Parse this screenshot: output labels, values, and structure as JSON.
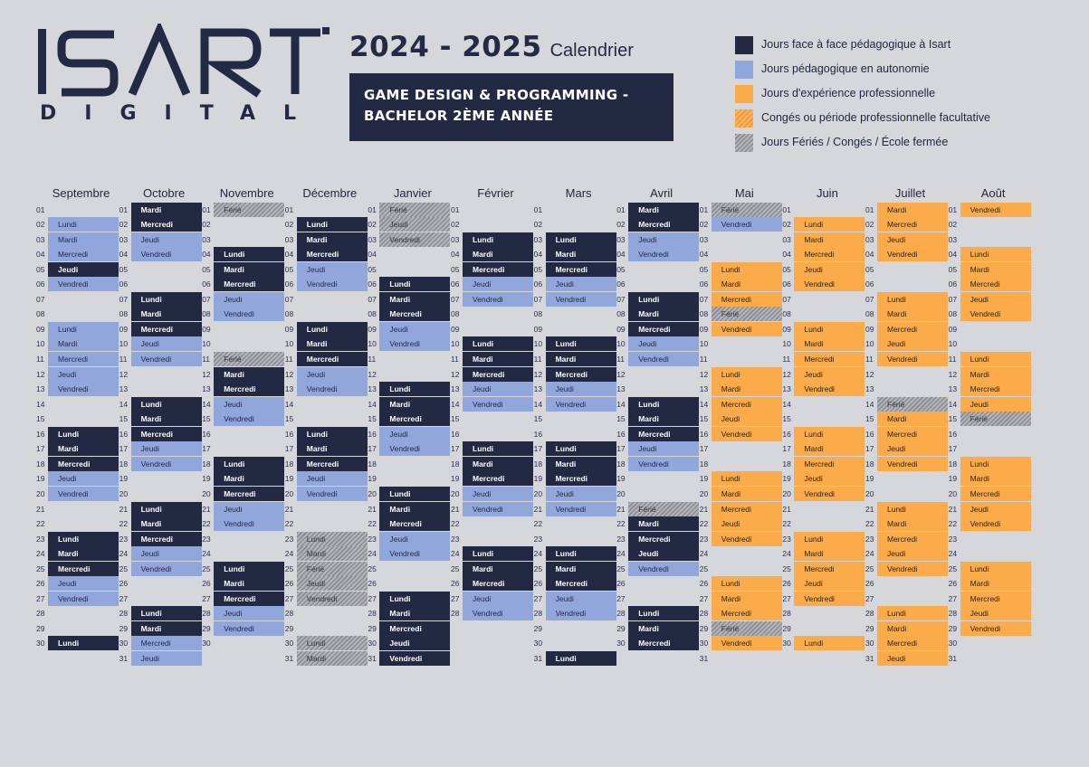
{
  "header": {
    "logo_main": "ISART",
    "logo_sub": "DIGITAL",
    "year": "2024 - 2025",
    "year_suffix": "Calendrier",
    "program_line1": "GAME DESIGN & PROGRAMMING -",
    "program_line2": "BACHELOR 2ÈME ANNÉE"
  },
  "colors": {
    "F": "#232843",
    "A": "#91a7dc",
    "P": "#fbab4a",
    "O": "#f59b35",
    "H": "#8a8c91",
    "background": "#d6d7da"
  },
  "legend": [
    {
      "key": "F",
      "label": "Jours face à face pédagogique à Isart"
    },
    {
      "key": "A",
      "label": "Jours pédagogique en autonomie"
    },
    {
      "key": "P",
      "label": "Jours d'expérience professionnelle"
    },
    {
      "key": "O",
      "label": "Congés ou période professionnelle facultative"
    },
    {
      "key": "H",
      "label": "Jours Fériés / Congés / École fermée"
    }
  ],
  "months": [
    {
      "name": "Septembre",
      "days": 30,
      "cells": {
        "02": [
          "A",
          "Lundi"
        ],
        "03": [
          "A",
          "Mardi"
        ],
        "04": [
          "A",
          "Mercredi"
        ],
        "05": [
          "F",
          "Jeudi"
        ],
        "06": [
          "A",
          "Vendredi"
        ],
        "09": [
          "A",
          "Lundi"
        ],
        "10": [
          "A",
          "Mardi"
        ],
        "11": [
          "A",
          "Mercredi"
        ],
        "12": [
          "A",
          "Jeudi"
        ],
        "13": [
          "A",
          "Vendredi"
        ],
        "16": [
          "F",
          "Lundi"
        ],
        "17": [
          "F",
          "Mardi"
        ],
        "18": [
          "F",
          "Mercredi"
        ],
        "19": [
          "A",
          "Jeudi"
        ],
        "20": [
          "A",
          "Vendredi"
        ],
        "23": [
          "F",
          "Lundi"
        ],
        "24": [
          "F",
          "Mardi"
        ],
        "25": [
          "F",
          "Mercredi"
        ],
        "26": [
          "A",
          "Jeudi"
        ],
        "27": [
          "A",
          "Vendredi"
        ],
        "30": [
          "F",
          "Lundi"
        ]
      }
    },
    {
      "name": "Octobre",
      "days": 31,
      "cells": {
        "01": [
          "F",
          "Mardi"
        ],
        "02": [
          "F",
          "Mercredi"
        ],
        "03": [
          "A",
          "Jeudi"
        ],
        "04": [
          "A",
          "Vendredi"
        ],
        "07": [
          "F",
          "Lundi"
        ],
        "08": [
          "F",
          "Mardi"
        ],
        "09": [
          "F",
          "Mercredi"
        ],
        "10": [
          "A",
          "Jeudi"
        ],
        "11": [
          "A",
          "Vendredi"
        ],
        "14": [
          "F",
          "Lundi"
        ],
        "15": [
          "F",
          "Mardi"
        ],
        "16": [
          "F",
          "Mercredi"
        ],
        "17": [
          "A",
          "Jeudi"
        ],
        "18": [
          "A",
          "Vendredi"
        ],
        "21": [
          "F",
          "Lundi"
        ],
        "22": [
          "F",
          "Mardi"
        ],
        "23": [
          "F",
          "Mercredi"
        ],
        "24": [
          "A",
          "Jeudi"
        ],
        "25": [
          "A",
          "Vendredi"
        ],
        "28": [
          "F",
          "Lundi"
        ],
        "29": [
          "F",
          "Mardi"
        ],
        "30": [
          "A",
          "Mercredi"
        ],
        "31": [
          "A",
          "Jeudi"
        ]
      }
    },
    {
      "name": "Novembre",
      "days": 30,
      "cells": {
        "01": [
          "H",
          "Férié"
        ],
        "04": [
          "F",
          "Lundi"
        ],
        "05": [
          "F",
          "Mardi"
        ],
        "06": [
          "F",
          "Mercredi"
        ],
        "07": [
          "A",
          "Jeudi"
        ],
        "08": [
          "A",
          "Vendredi"
        ],
        "11": [
          "H",
          "Férié"
        ],
        "12": [
          "F",
          "Mardi"
        ],
        "13": [
          "F",
          "Mercredi"
        ],
        "14": [
          "A",
          "Jeudi"
        ],
        "15": [
          "A",
          "Vendredi"
        ],
        "18": [
          "F",
          "Lundi"
        ],
        "19": [
          "F",
          "Mardi"
        ],
        "20": [
          "F",
          "Mercredi"
        ],
        "21": [
          "A",
          "Jeudi"
        ],
        "22": [
          "A",
          "Vendredi"
        ],
        "25": [
          "F",
          "Lundi"
        ],
        "26": [
          "F",
          "Mardi"
        ],
        "27": [
          "F",
          "Mercredi"
        ],
        "28": [
          "A",
          "Jeudi"
        ],
        "29": [
          "A",
          "Vendredi"
        ]
      }
    },
    {
      "name": "Décembre",
      "days": 31,
      "cells": {
        "02": [
          "F",
          "Lundi"
        ],
        "03": [
          "F",
          "Mardi"
        ],
        "04": [
          "F",
          "Mercredi"
        ],
        "05": [
          "A",
          "Jeudi"
        ],
        "06": [
          "A",
          "Vendredi"
        ],
        "09": [
          "F",
          "Lundi"
        ],
        "10": [
          "F",
          "Mardi"
        ],
        "11": [
          "F",
          "Mercredi"
        ],
        "12": [
          "A",
          "Jeudi"
        ],
        "13": [
          "A",
          "Vendredi"
        ],
        "16": [
          "F",
          "Lundi"
        ],
        "17": [
          "F",
          "Mardi"
        ],
        "18": [
          "F",
          "Mercredi"
        ],
        "19": [
          "A",
          "Jeudi"
        ],
        "20": [
          "A",
          "Vendredi"
        ],
        "23": [
          "H",
          "Lundi"
        ],
        "24": [
          "H",
          "Mardi"
        ],
        "25": [
          "H",
          "Férié"
        ],
        "26": [
          "H",
          "Jeudi"
        ],
        "27": [
          "H",
          "Vendredi"
        ],
        "30": [
          "H",
          "Lundi"
        ],
        "31": [
          "H",
          "Mardi"
        ]
      }
    },
    {
      "name": "Janvier",
      "days": 31,
      "cells": {
        "01": [
          "H",
          "Férié"
        ],
        "02": [
          "H",
          "Jeudi"
        ],
        "03": [
          "H",
          "Vendredi"
        ],
        "06": [
          "F",
          "Lundi"
        ],
        "07": [
          "F",
          "Mardi"
        ],
        "08": [
          "F",
          "Mercredi"
        ],
        "09": [
          "A",
          "Jeudi"
        ],
        "10": [
          "A",
          "Vendredi"
        ],
        "13": [
          "F",
          "Lundi"
        ],
        "14": [
          "F",
          "Mardi"
        ],
        "15": [
          "F",
          "Mercredi"
        ],
        "16": [
          "A",
          "Jeudi"
        ],
        "17": [
          "A",
          "Vendredi"
        ],
        "20": [
          "F",
          "Lundi"
        ],
        "21": [
          "F",
          "Mardi"
        ],
        "22": [
          "F",
          "Mercredi"
        ],
        "23": [
          "A",
          "Jeudi"
        ],
        "24": [
          "A",
          "Vendredi"
        ],
        "27": [
          "F",
          "Lundi"
        ],
        "28": [
          "F",
          "Mardi"
        ],
        "29": [
          "F",
          "Mercredi"
        ],
        "30": [
          "F",
          "Jeudi"
        ],
        "31": [
          "F",
          "Vendredi"
        ]
      }
    },
    {
      "name": "Février",
      "days": 28,
      "cells": {
        "03": [
          "F",
          "Lundi"
        ],
        "04": [
          "F",
          "Mardi"
        ],
        "05": [
          "F",
          "Mercredi"
        ],
        "06": [
          "A",
          "Jeudi"
        ],
        "07": [
          "A",
          "Vendredi"
        ],
        "10": [
          "F",
          "Lundi"
        ],
        "11": [
          "F",
          "Mardi"
        ],
        "12": [
          "F",
          "Mercredi"
        ],
        "13": [
          "A",
          "Jeudi"
        ],
        "14": [
          "A",
          "Vendredi"
        ],
        "17": [
          "F",
          "Lundi"
        ],
        "18": [
          "F",
          "Mardi"
        ],
        "19": [
          "F",
          "Mercredi"
        ],
        "20": [
          "A",
          "Jeudi"
        ],
        "21": [
          "A",
          "Vendredi"
        ],
        "24": [
          "F",
          "Lundi"
        ],
        "25": [
          "F",
          "Mardi"
        ],
        "26": [
          "F",
          "Mercredi"
        ],
        "27": [
          "A",
          "Jeudi"
        ],
        "28": [
          "A",
          "Vendredi"
        ]
      }
    },
    {
      "name": "Mars",
      "days": 31,
      "cells": {
        "03": [
          "F",
          "Lundi"
        ],
        "04": [
          "F",
          "Mardi"
        ],
        "05": [
          "F",
          "Mercredi"
        ],
        "06": [
          "A",
          "Jeudi"
        ],
        "07": [
          "A",
          "Vendredi"
        ],
        "10": [
          "F",
          "Lundi"
        ],
        "11": [
          "F",
          "Mardi"
        ],
        "12": [
          "F",
          "Mercredi"
        ],
        "13": [
          "A",
          "Jeudi"
        ],
        "14": [
          "A",
          "Vendredi"
        ],
        "17": [
          "F",
          "Lundi"
        ],
        "18": [
          "F",
          "Mardi"
        ],
        "19": [
          "F",
          "Mercredi"
        ],
        "20": [
          "A",
          "Jeudi"
        ],
        "21": [
          "A",
          "Vendredi"
        ],
        "24": [
          "F",
          "Lundi"
        ],
        "25": [
          "F",
          "Mardi"
        ],
        "26": [
          "F",
          "Mercredi"
        ],
        "27": [
          "A",
          "Jeudi"
        ],
        "28": [
          "A",
          "Vendredi"
        ],
        "31": [
          "F",
          "Lundi"
        ]
      }
    },
    {
      "name": "Avril",
      "days": 30,
      "cells": {
        "01": [
          "F",
          "Mardi"
        ],
        "02": [
          "F",
          "Mercredi"
        ],
        "03": [
          "A",
          "Jeudi"
        ],
        "04": [
          "A",
          "Vendredi"
        ],
        "07": [
          "F",
          "Lundi"
        ],
        "08": [
          "F",
          "Mardi"
        ],
        "09": [
          "F",
          "Mercredi"
        ],
        "10": [
          "A",
          "Jeudi"
        ],
        "11": [
          "A",
          "Vendredi"
        ],
        "14": [
          "F",
          "Lundi"
        ],
        "15": [
          "F",
          "Mardi"
        ],
        "16": [
          "F",
          "Mercredi"
        ],
        "17": [
          "A",
          "Jeudi"
        ],
        "18": [
          "A",
          "Vendredi"
        ],
        "21": [
          "H",
          "Férié"
        ],
        "22": [
          "F",
          "Mardi"
        ],
        "23": [
          "F",
          "Mercredi"
        ],
        "24": [
          "F",
          "Jeudi"
        ],
        "25": [
          "A",
          "Vendredi"
        ],
        "28": [
          "F",
          "Lundi"
        ],
        "29": [
          "F",
          "Mardi"
        ],
        "30": [
          "F",
          "Mercredi"
        ]
      }
    },
    {
      "name": "Mai",
      "days": 31,
      "cells": {
        "01": [
          "H",
          "Férié"
        ],
        "02": [
          "A",
          "Vendredi"
        ],
        "05": [
          "P",
          "Lundi"
        ],
        "06": [
          "P",
          "Mardi"
        ],
        "07": [
          "P",
          "Mercredi"
        ],
        "08": [
          "H",
          "Férié"
        ],
        "09": [
          "P",
          "Vendredi"
        ],
        "12": [
          "P",
          "Lundi"
        ],
        "13": [
          "P",
          "Mardi"
        ],
        "14": [
          "P",
          "Mercredi"
        ],
        "15": [
          "P",
          "Jeudi"
        ],
        "16": [
          "P",
          "Vendredi"
        ],
        "19": [
          "P",
          "Lundi"
        ],
        "20": [
          "P",
          "Mardi"
        ],
        "21": [
          "P",
          "Mercredi"
        ],
        "22": [
          "P",
          "Jeudi"
        ],
        "23": [
          "P",
          "Vendredi"
        ],
        "26": [
          "P",
          "Lundi"
        ],
        "27": [
          "P",
          "Mardi"
        ],
        "28": [
          "P",
          "Mercredi"
        ],
        "29": [
          "H",
          "Férié"
        ],
        "30": [
          "P",
          "Vendredi"
        ]
      }
    },
    {
      "name": "Juin",
      "days": 30,
      "cells": {
        "02": [
          "P",
          "Lundi"
        ],
        "03": [
          "P",
          "Mardi"
        ],
        "04": [
          "P",
          "Mercredi"
        ],
        "05": [
          "P",
          "Jeudi"
        ],
        "06": [
          "P",
          "Vendredi"
        ],
        "09": [
          "P",
          "Lundi"
        ],
        "10": [
          "P",
          "Mardi"
        ],
        "11": [
          "P",
          "Mercredi"
        ],
        "12": [
          "P",
          "Jeudi"
        ],
        "13": [
          "P",
          "Vendredi"
        ],
        "16": [
          "P",
          "Lundi"
        ],
        "17": [
          "P",
          "Mardi"
        ],
        "18": [
          "P",
          "Mercredi"
        ],
        "19": [
          "P",
          "Jeudi"
        ],
        "20": [
          "P",
          "Vendredi"
        ],
        "23": [
          "P",
          "Lundi"
        ],
        "24": [
          "P",
          "Mardi"
        ],
        "25": [
          "P",
          "Mercredi"
        ],
        "26": [
          "P",
          "Jeudi"
        ],
        "27": [
          "P",
          "Vendredi"
        ],
        "30": [
          "P",
          "Lundi"
        ]
      }
    },
    {
      "name": "Juillet",
      "days": 31,
      "cells": {
        "01": [
          "P",
          "Mardi"
        ],
        "02": [
          "P",
          "Mercredi"
        ],
        "03": [
          "P",
          "Jeudi"
        ],
        "04": [
          "P",
          "Vendredi"
        ],
        "07": [
          "P",
          "Lundi"
        ],
        "08": [
          "P",
          "Mardi"
        ],
        "09": [
          "P",
          "Mercredi"
        ],
        "10": [
          "P",
          "Jeudi"
        ],
        "11": [
          "P",
          "Vendredi"
        ],
        "14": [
          "H",
          "Férié"
        ],
        "15": [
          "P",
          "Mardi"
        ],
        "16": [
          "P",
          "Mercredi"
        ],
        "17": [
          "P",
          "Jeudi"
        ],
        "18": [
          "P",
          "Vendredi"
        ],
        "21": [
          "P",
          "Lundi"
        ],
        "22": [
          "P",
          "Mardi"
        ],
        "23": [
          "P",
          "Mercredi"
        ],
        "24": [
          "P",
          "Jeudi"
        ],
        "25": [
          "P",
          "Vendredi"
        ],
        "28": [
          "P",
          "Lundi"
        ],
        "29": [
          "P",
          "Mardi"
        ],
        "30": [
          "P",
          "Mercredi"
        ],
        "31": [
          "P",
          "Jeudi"
        ]
      }
    },
    {
      "name": "Août",
      "days": 31,
      "cells": {
        "01": [
          "P",
          "Vendredi"
        ],
        "04": [
          "P",
          "Lundi"
        ],
        "05": [
          "P",
          "Mardi"
        ],
        "06": [
          "P",
          "Mercredi"
        ],
        "07": [
          "P",
          "Jeudi"
        ],
        "08": [
          "P",
          "Vendredi"
        ],
        "11": [
          "P",
          "Lundi"
        ],
        "12": [
          "P",
          "Mardi"
        ],
        "13": [
          "P",
          "Mercredi"
        ],
        "14": [
          "P",
          "Jeudi"
        ],
        "15": [
          "H",
          "Férié"
        ],
        "18": [
          "P",
          "Lundi"
        ],
        "19": [
          "P",
          "Mardi"
        ],
        "20": [
          "P",
          "Mercredi"
        ],
        "21": [
          "P",
          "Jeudi"
        ],
        "22": [
          "P",
          "Vendredi"
        ],
        "25": [
          "P",
          "Lundi"
        ],
        "26": [
          "P",
          "Mardi"
        ],
        "27": [
          "P",
          "Mercredi"
        ],
        "28": [
          "P",
          "Jeudi"
        ],
        "29": [
          "P",
          "Vendredi"
        ]
      }
    }
  ]
}
